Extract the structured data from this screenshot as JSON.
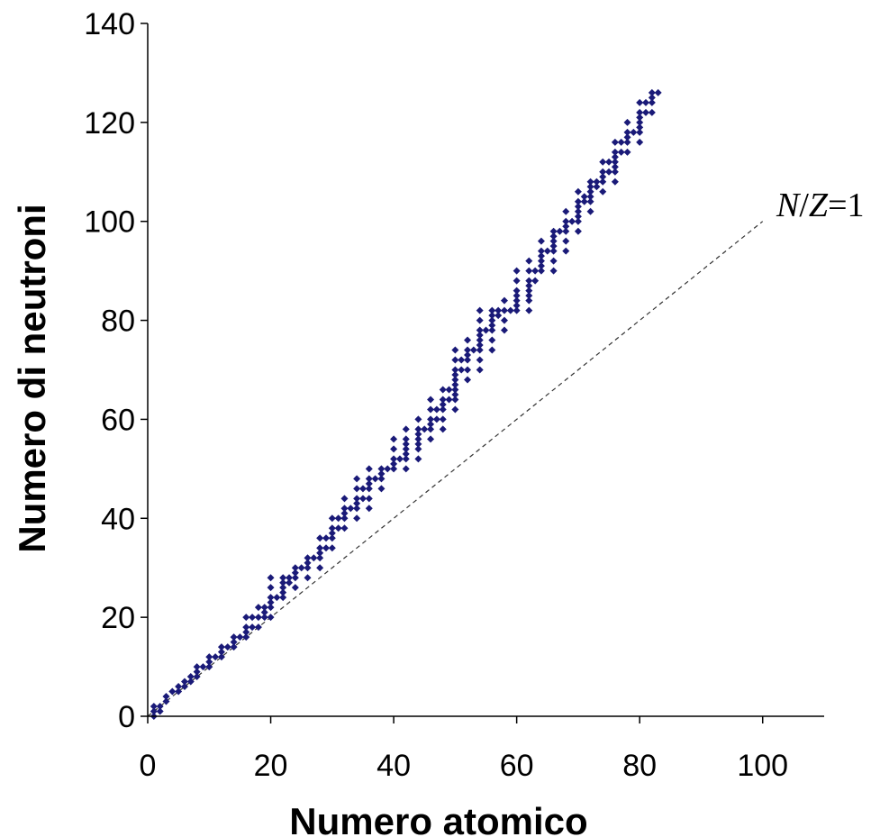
{
  "chart_data": {
    "type": "scatter",
    "title": "",
    "xlabel": "Numero atomico",
    "ylabel": "Numero di neutroni",
    "xlim": [
      0,
      110
    ],
    "ylim": [
      0,
      140
    ],
    "x_ticks": [
      0,
      20,
      40,
      60,
      80,
      100
    ],
    "y_ticks": [
      0,
      20,
      40,
      60,
      80,
      100,
      120,
      140
    ],
    "grid": false,
    "colors": {
      "points": "#1a1a78",
      "reference_line": "#333333",
      "axes": "#000000"
    },
    "reference_line": {
      "label_N": "N",
      "label_slash": "/",
      "label_Z": "Z",
      "label_eq": "=1",
      "x": [
        0,
        100
      ],
      "y": [
        0,
        100
      ],
      "style": "dashed"
    },
    "series": [
      {
        "marker": "diamond",
        "points": [
          [
            1,
            0
          ],
          [
            1,
            1
          ],
          [
            1,
            2
          ],
          [
            2,
            1
          ],
          [
            2,
            2
          ],
          [
            3,
            3
          ],
          [
            3,
            4
          ],
          [
            4,
            5
          ],
          [
            5,
            5
          ],
          [
            5,
            6
          ],
          [
            6,
            6
          ],
          [
            6,
            7
          ],
          [
            7,
            7
          ],
          [
            7,
            8
          ],
          [
            8,
            8
          ],
          [
            8,
            9
          ],
          [
            8,
            10
          ],
          [
            9,
            10
          ],
          [
            10,
            10
          ],
          [
            10,
            11
          ],
          [
            10,
            12
          ],
          [
            11,
            12
          ],
          [
            12,
            12
          ],
          [
            12,
            13
          ],
          [
            12,
            14
          ],
          [
            13,
            14
          ],
          [
            14,
            14
          ],
          [
            14,
            15
          ],
          [
            14,
            16
          ],
          [
            15,
            16
          ],
          [
            16,
            16
          ],
          [
            16,
            17
          ],
          [
            16,
            18
          ],
          [
            16,
            20
          ],
          [
            17,
            18
          ],
          [
            17,
            20
          ],
          [
            18,
            18
          ],
          [
            18,
            20
          ],
          [
            18,
            22
          ],
          [
            19,
            20
          ],
          [
            19,
            21
          ],
          [
            19,
            22
          ],
          [
            20,
            20
          ],
          [
            20,
            22
          ],
          [
            20,
            23
          ],
          [
            20,
            24
          ],
          [
            20,
            26
          ],
          [
            20,
            28
          ],
          [
            21,
            24
          ],
          [
            22,
            24
          ],
          [
            22,
            25
          ],
          [
            22,
            26
          ],
          [
            22,
            27
          ],
          [
            22,
            28
          ],
          [
            23,
            27
          ],
          [
            23,
            28
          ],
          [
            24,
            26
          ],
          [
            24,
            28
          ],
          [
            24,
            29
          ],
          [
            24,
            30
          ],
          [
            25,
            30
          ],
          [
            26,
            28
          ],
          [
            26,
            30
          ],
          [
            26,
            31
          ],
          [
            26,
            32
          ],
          [
            27,
            32
          ],
          [
            28,
            30
          ],
          [
            28,
            32
          ],
          [
            28,
            33
          ],
          [
            28,
            34
          ],
          [
            28,
            36
          ],
          [
            29,
            34
          ],
          [
            29,
            36
          ],
          [
            30,
            34
          ],
          [
            30,
            36
          ],
          [
            30,
            37
          ],
          [
            30,
            38
          ],
          [
            30,
            40
          ],
          [
            31,
            38
          ],
          [
            31,
            40
          ],
          [
            32,
            38
          ],
          [
            32,
            40
          ],
          [
            32,
            41
          ],
          [
            32,
            42
          ],
          [
            32,
            44
          ],
          [
            33,
            42
          ],
          [
            34,
            40
          ],
          [
            34,
            42
          ],
          [
            34,
            43
          ],
          [
            34,
            44
          ],
          [
            34,
            46
          ],
          [
            34,
            48
          ],
          [
            35,
            44
          ],
          [
            35,
            46
          ],
          [
            36,
            42
          ],
          [
            36,
            44
          ],
          [
            36,
            46
          ],
          [
            36,
            47
          ],
          [
            36,
            48
          ],
          [
            36,
            50
          ],
          [
            37,
            48
          ],
          [
            38,
            46
          ],
          [
            38,
            48
          ],
          [
            38,
            49
          ],
          [
            38,
            50
          ],
          [
            39,
            50
          ],
          [
            40,
            50
          ],
          [
            40,
            51
          ],
          [
            40,
            52
          ],
          [
            40,
            54
          ],
          [
            40,
            56
          ],
          [
            41,
            52
          ],
          [
            42,
            50
          ],
          [
            42,
            52
          ],
          [
            42,
            53
          ],
          [
            42,
            54
          ],
          [
            42,
            55
          ],
          [
            42,
            56
          ],
          [
            42,
            58
          ],
          [
            44,
            52
          ],
          [
            44,
            54
          ],
          [
            44,
            55
          ],
          [
            44,
            56
          ],
          [
            44,
            57
          ],
          [
            44,
            58
          ],
          [
            44,
            60
          ],
          [
            45,
            58
          ],
          [
            46,
            56
          ],
          [
            46,
            58
          ],
          [
            46,
            59
          ],
          [
            46,
            60
          ],
          [
            46,
            62
          ],
          [
            46,
            64
          ],
          [
            47,
            60
          ],
          [
            47,
            62
          ],
          [
            48,
            58
          ],
          [
            48,
            60
          ],
          [
            48,
            62
          ],
          [
            48,
            63
          ],
          [
            48,
            64
          ],
          [
            48,
            66
          ],
          [
            49,
            64
          ],
          [
            49,
            66
          ],
          [
            50,
            62
          ],
          [
            50,
            64
          ],
          [
            50,
            65
          ],
          [
            50,
            66
          ],
          [
            50,
            67
          ],
          [
            50,
            68
          ],
          [
            50,
            69
          ],
          [
            50,
            70
          ],
          [
            50,
            72
          ],
          [
            50,
            74
          ],
          [
            51,
            70
          ],
          [
            51,
            72
          ],
          [
            52,
            68
          ],
          [
            52,
            70
          ],
          [
            52,
            72
          ],
          [
            52,
            73
          ],
          [
            52,
            74
          ],
          [
            52,
            76
          ],
          [
            53,
            74
          ],
          [
            54,
            70
          ],
          [
            54,
            72
          ],
          [
            54,
            74
          ],
          [
            54,
            75
          ],
          [
            54,
            76
          ],
          [
            54,
            77
          ],
          [
            54,
            78
          ],
          [
            54,
            80
          ],
          [
            54,
            82
          ],
          [
            55,
            78
          ],
          [
            56,
            74
          ],
          [
            56,
            76
          ],
          [
            56,
            78
          ],
          [
            56,
            79
          ],
          [
            56,
            80
          ],
          [
            56,
            81
          ],
          [
            56,
            82
          ],
          [
            57,
            81
          ],
          [
            57,
            82
          ],
          [
            58,
            78
          ],
          [
            58,
            80
          ],
          [
            58,
            82
          ],
          [
            58,
            84
          ],
          [
            59,
            82
          ],
          [
            60,
            82
          ],
          [
            60,
            83
          ],
          [
            60,
            84
          ],
          [
            60,
            85
          ],
          [
            60,
            86
          ],
          [
            60,
            88
          ],
          [
            60,
            90
          ],
          [
            62,
            82
          ],
          [
            62,
            84
          ],
          [
            62,
            85
          ],
          [
            62,
            86
          ],
          [
            62,
            87
          ],
          [
            62,
            88
          ],
          [
            62,
            90
          ],
          [
            62,
            92
          ],
          [
            63,
            88
          ],
          [
            63,
            90
          ],
          [
            64,
            90
          ],
          [
            64,
            91
          ],
          [
            64,
            92
          ],
          [
            64,
            93
          ],
          [
            64,
            94
          ],
          [
            64,
            96
          ],
          [
            65,
            94
          ],
          [
            66,
            90
          ],
          [
            66,
            92
          ],
          [
            66,
            94
          ],
          [
            66,
            95
          ],
          [
            66,
            96
          ],
          [
            66,
            97
          ],
          [
            66,
            98
          ],
          [
            67,
            98
          ],
          [
            68,
            94
          ],
          [
            68,
            96
          ],
          [
            68,
            98
          ],
          [
            68,
            99
          ],
          [
            68,
            100
          ],
          [
            68,
            102
          ],
          [
            69,
            100
          ],
          [
            70,
            98
          ],
          [
            70,
            100
          ],
          [
            70,
            101
          ],
          [
            70,
            102
          ],
          [
            70,
            103
          ],
          [
            70,
            104
          ],
          [
            70,
            106
          ],
          [
            71,
            104
          ],
          [
            71,
            105
          ],
          [
            72,
            102
          ],
          [
            72,
            104
          ],
          [
            72,
            105
          ],
          [
            72,
            106
          ],
          [
            72,
            107
          ],
          [
            72,
            108
          ],
          [
            73,
            107
          ],
          [
            73,
            108
          ],
          [
            74,
            106
          ],
          [
            74,
            108
          ],
          [
            74,
            109
          ],
          [
            74,
            110
          ],
          [
            74,
            112
          ],
          [
            75,
            110
          ],
          [
            75,
            112
          ],
          [
            76,
            108
          ],
          [
            76,
            110
          ],
          [
            76,
            111
          ],
          [
            76,
            112
          ],
          [
            76,
            113
          ],
          [
            76,
            114
          ],
          [
            76,
            116
          ],
          [
            77,
            114
          ],
          [
            77,
            116
          ],
          [
            78,
            114
          ],
          [
            78,
            116
          ],
          [
            78,
            117
          ],
          [
            78,
            118
          ],
          [
            78,
            120
          ],
          [
            79,
            118
          ],
          [
            80,
            116
          ],
          [
            80,
            118
          ],
          [
            80,
            119
          ],
          [
            80,
            120
          ],
          [
            80,
            121
          ],
          [
            80,
            122
          ],
          [
            80,
            124
          ],
          [
            81,
            122
          ],
          [
            81,
            124
          ],
          [
            82,
            122
          ],
          [
            82,
            124
          ],
          [
            82,
            125
          ],
          [
            82,
            126
          ],
          [
            83,
            126
          ]
        ]
      }
    ]
  }
}
